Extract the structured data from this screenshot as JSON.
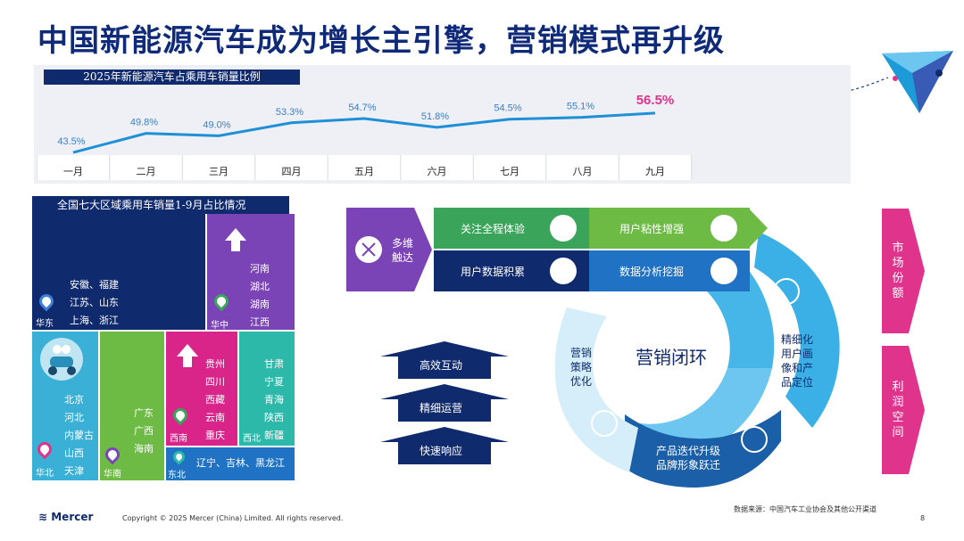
{
  "title": "中国新能源汽车成为增长主引擎，营销模式再升级",
  "top_chart": {
    "label": "2025年新能源汽车占乘用车销量比例",
    "accent_color": "#e0338c",
    "line_color": "#1f8fd6"
  },
  "chart_data": {
    "type": "line",
    "title": "2025年新能源汽车占乘用车销量比例",
    "categories": [
      "一月",
      "二月",
      "三月",
      "四月",
      "五月",
      "六月",
      "七月",
      "八月",
      "九月"
    ],
    "values": [
      43.5,
      49.8,
      49.0,
      53.3,
      54.7,
      51.8,
      54.5,
      55.1,
      56.5
    ],
    "labels": [
      "43.5%",
      "49.8%",
      "49.0%",
      "53.3%",
      "54.7%",
      "51.8%",
      "54.5%",
      "55.1%",
      "56.5%"
    ],
    "ylim": [
      40,
      60
    ]
  },
  "map": {
    "title": "全国七大区域乘用车销量1-9月占比情况",
    "regions": [
      {
        "name": "华东",
        "provinces": [
          "安徽、福建",
          "江苏、山东",
          "上海、浙江"
        ]
      },
      {
        "name": "华中",
        "provinces": [
          "河南",
          "湖北",
          "湖南",
          "江西"
        ]
      },
      {
        "name": "华北",
        "provinces": [
          "北京",
          "河北",
          "内蒙古",
          "山西",
          "天津"
        ]
      },
      {
        "name": "华南",
        "provinces": [
          "广东",
          "广西",
          "海南"
        ]
      },
      {
        "name": "西南",
        "provinces": [
          "贵州",
          "四川",
          "西藏",
          "云南",
          "重庆"
        ]
      },
      {
        "name": "西北",
        "provinces": [
          "甘肃",
          "宁夏",
          "青海",
          "陕西",
          "新疆"
        ]
      },
      {
        "name": "东北",
        "provinces": [
          "辽宁、吉林、黑龙江"
        ]
      }
    ]
  },
  "process": {
    "touch": "多维触达",
    "boxes": [
      "关注全程体验",
      "用户粘性增强",
      "用户数据积累",
      "数据分析挖掘"
    ],
    "loop_center": "营销闭环",
    "loop_right": "精细化用户画像和产品定位",
    "loop_bottom": [
      "产品迭代升级",
      "品牌形象跃迁"
    ],
    "loop_left": "营销策略优化",
    "arrows": [
      "高效互动",
      "精细运营",
      "快速响应"
    ],
    "side": [
      "市场份额",
      "利润空间"
    ]
  },
  "footer": {
    "logo": "Mercer",
    "copyright": "Copyright © 2025 Mercer (China) Limited. All rights reserved.",
    "source": "数据来源：中国汽车工业协会及其他公开渠道",
    "page": "8"
  }
}
